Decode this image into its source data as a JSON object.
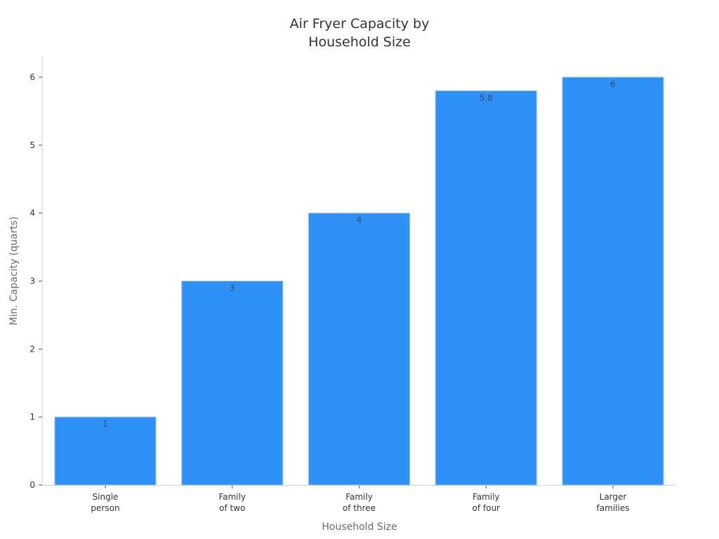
{
  "chart_data": {
    "type": "bar",
    "title": "Air Fryer Capacity by Household Size",
    "title_lines": [
      "Air Fryer Capacity by",
      "Household Size"
    ],
    "xlabel": "Household Size",
    "ylabel": "Min. Capacity (quarts)",
    "categories": [
      "Single person",
      "Family of two",
      "Family of three",
      "Family of four",
      "Larger families"
    ],
    "category_lines": [
      [
        "Single",
        "person"
      ],
      [
        "Family",
        "of two"
      ],
      [
        "Family",
        "of three"
      ],
      [
        "Family",
        "of four"
      ],
      [
        "Larger",
        "families"
      ]
    ],
    "values": [
      1,
      3,
      4,
      5.8,
      6
    ],
    "data_labels": [
      "1",
      "3",
      "4",
      "5.8",
      "6"
    ],
    "ylim": [
      0,
      6.3
    ],
    "yticks": [
      0,
      1,
      2,
      3,
      4,
      5,
      6
    ],
    "grid": false,
    "legend": null,
    "colors": {
      "bar": "#2f91f7",
      "bar_edge": "#8ec4fa",
      "axis": "#d0d0d0"
    }
  }
}
